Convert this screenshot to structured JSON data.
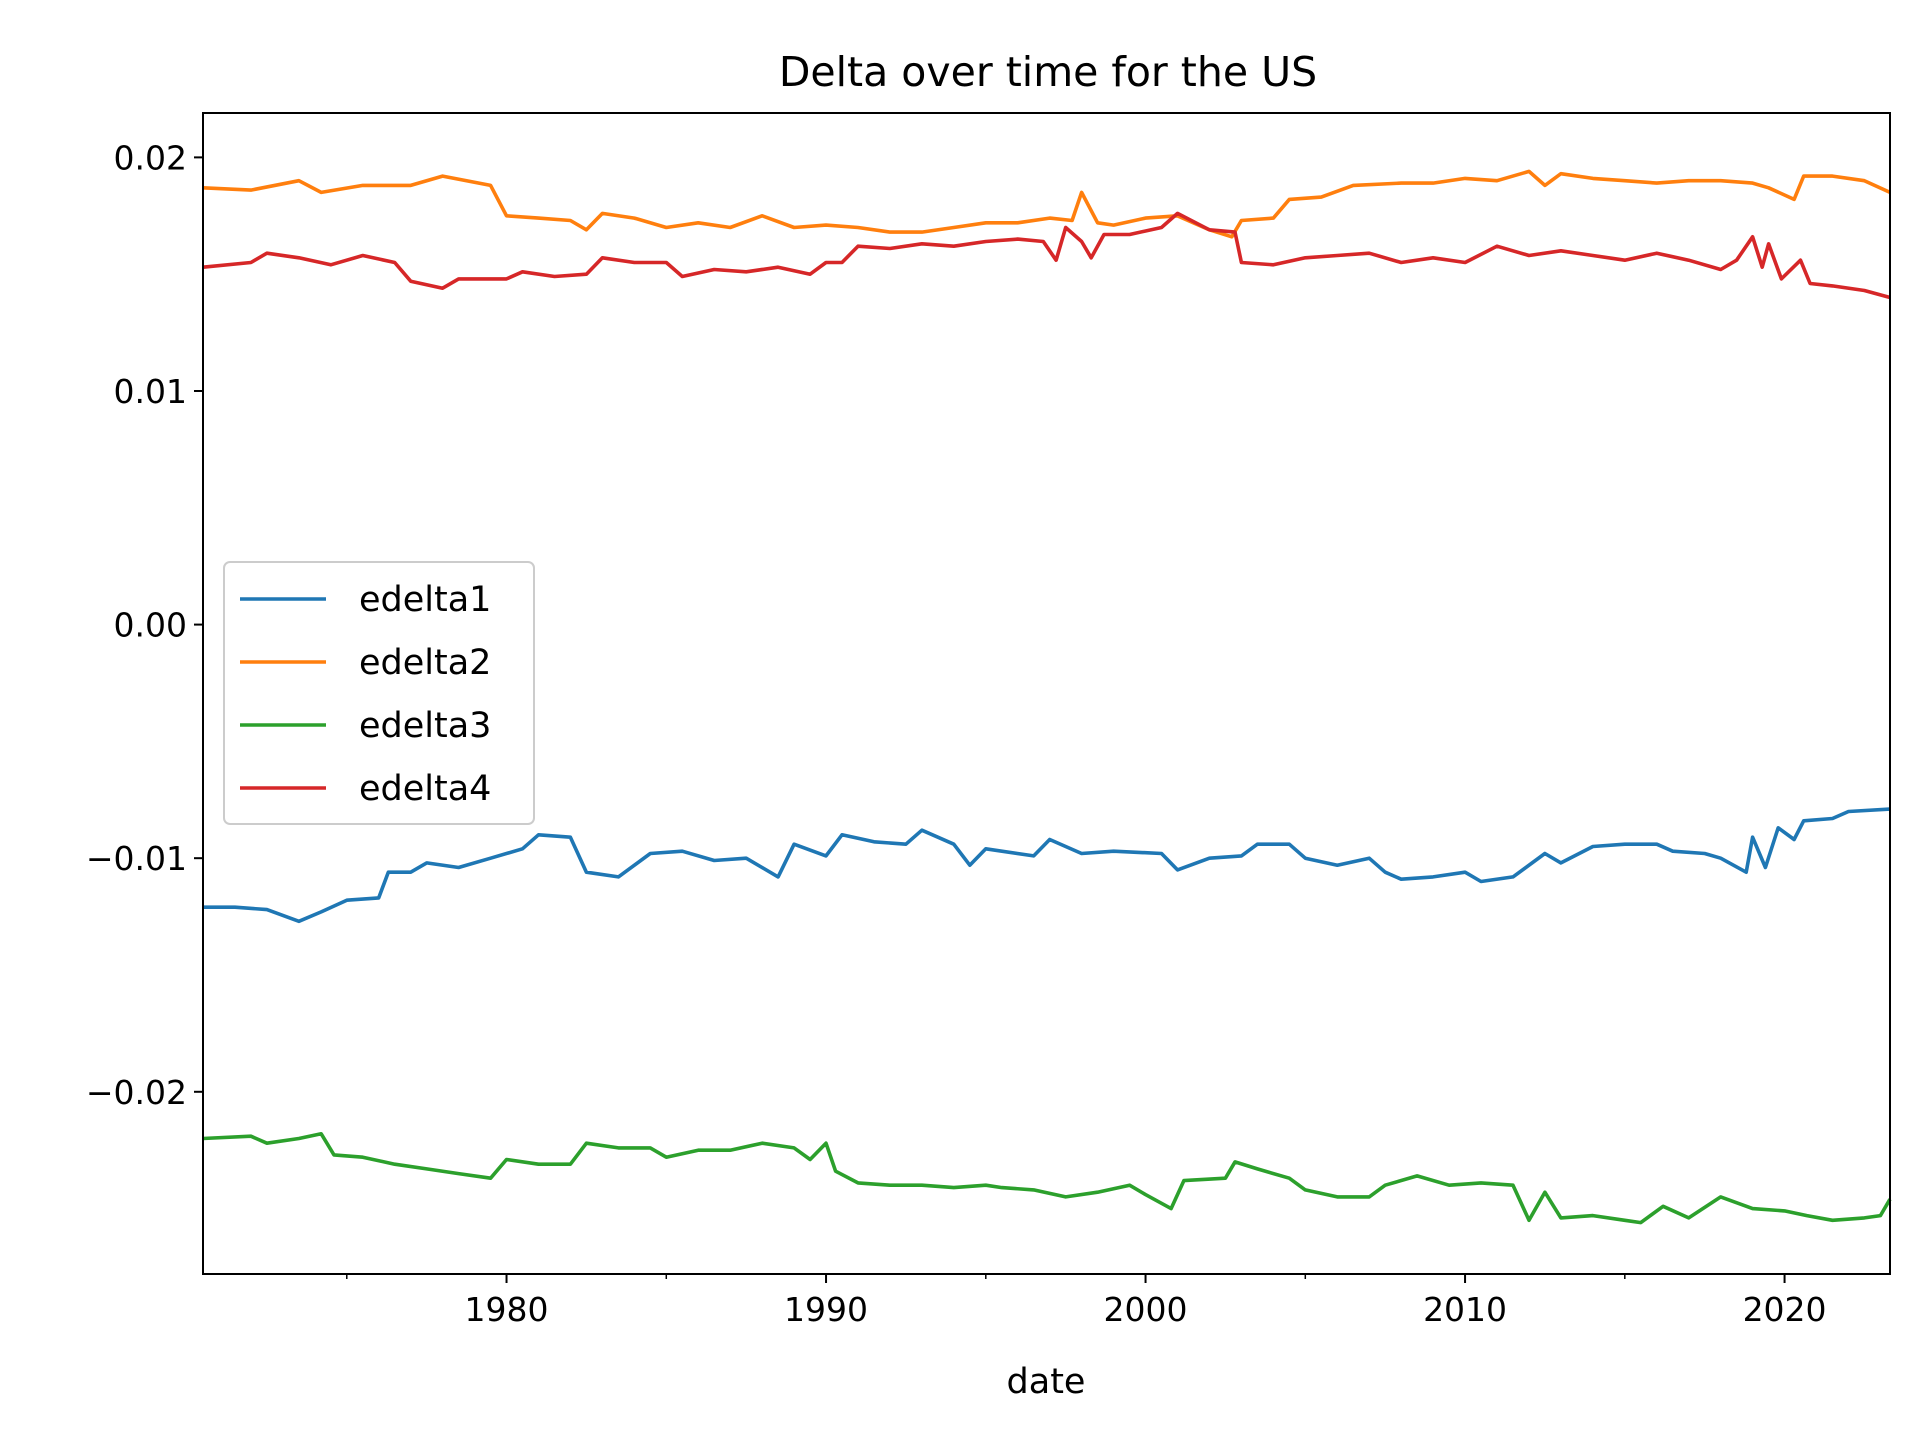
{
  "chart_data": {
    "type": "line",
    "title": "Delta over time for the US",
    "xlabel": "date",
    "ylabel": "",
    "xlim": [
      1970.5,
      2023.3
    ],
    "ylim": [
      -0.0278,
      0.0219
    ],
    "x_ticks_major": [
      1980,
      1990,
      2000,
      2010,
      2020
    ],
    "x_ticks_minor": [
      1975,
      1985,
      1995,
      2005,
      2015
    ],
    "y_ticks": [
      {
        "value": 0.02,
        "label": "0.02"
      },
      {
        "value": 0.01,
        "label": "0.01"
      },
      {
        "value": 0.0,
        "label": "0.00"
      },
      {
        "value": -0.01,
        "label": "−0.01"
      },
      {
        "value": -0.02,
        "label": "−0.02"
      }
    ],
    "grid": false,
    "legend": "center-left",
    "series": [
      {
        "name": "edelta1",
        "color": "#1f77b4",
        "points": [
          [
            1970.5,
            -0.0121
          ],
          [
            1971.5,
            -0.0121
          ],
          [
            1972.5,
            -0.0122
          ],
          [
            1973.5,
            -0.0127
          ],
          [
            1974.2,
            -0.0123
          ],
          [
            1975,
            -0.0118
          ],
          [
            1976,
            -0.0117
          ],
          [
            1976.3,
            -0.0106
          ],
          [
            1977,
            -0.0106
          ],
          [
            1977.5,
            -0.0102
          ],
          [
            1978.5,
            -0.0104
          ],
          [
            1979.5,
            -0.01
          ],
          [
            1980.5,
            -0.0096
          ],
          [
            1981,
            -0.009
          ],
          [
            1982,
            -0.0091
          ],
          [
            1982.5,
            -0.0106
          ],
          [
            1983.5,
            -0.0108
          ],
          [
            1984.5,
            -0.0098
          ],
          [
            1985.5,
            -0.0097
          ],
          [
            1986.5,
            -0.0101
          ],
          [
            1987.5,
            -0.01
          ],
          [
            1988.5,
            -0.0108
          ],
          [
            1989,
            -0.0094
          ],
          [
            1990,
            -0.0099
          ],
          [
            1990.5,
            -0.009
          ],
          [
            1991.5,
            -0.0093
          ],
          [
            1992.5,
            -0.0094
          ],
          [
            1993,
            -0.0088
          ],
          [
            1994,
            -0.0094
          ],
          [
            1994.5,
            -0.0103
          ],
          [
            1995,
            -0.0096
          ],
          [
            1996.5,
            -0.0099
          ],
          [
            1997,
            -0.0092
          ],
          [
            1998,
            -0.0098
          ],
          [
            1999,
            -0.0097
          ],
          [
            2000.5,
            -0.0098
          ],
          [
            2001,
            -0.0105
          ],
          [
            2002,
            -0.01
          ],
          [
            2003,
            -0.0099
          ],
          [
            2003.5,
            -0.0094
          ],
          [
            2004.5,
            -0.0094
          ],
          [
            2005,
            -0.01
          ],
          [
            2006,
            -0.0103
          ],
          [
            2007,
            -0.01
          ],
          [
            2007.5,
            -0.0106
          ],
          [
            2008,
            -0.0109
          ],
          [
            2009,
            -0.0108
          ],
          [
            2010,
            -0.0106
          ],
          [
            2010.5,
            -0.011
          ],
          [
            2011.5,
            -0.0108
          ],
          [
            2012.5,
            -0.0098
          ],
          [
            2013,
            -0.0102
          ],
          [
            2014,
            -0.0095
          ],
          [
            2015,
            -0.0094
          ],
          [
            2016,
            -0.0094
          ],
          [
            2016.5,
            -0.0097
          ],
          [
            2017.5,
            -0.0098
          ],
          [
            2018,
            -0.01
          ],
          [
            2018.8,
            -0.0106
          ],
          [
            2019,
            -0.0091
          ],
          [
            2019.4,
            -0.0104
          ],
          [
            2019.8,
            -0.0087
          ],
          [
            2020.3,
            -0.0092
          ],
          [
            2020.6,
            -0.0084
          ],
          [
            2021.5,
            -0.0083
          ],
          [
            2022,
            -0.008
          ],
          [
            2023.3,
            -0.0079
          ]
        ]
      },
      {
        "name": "edelta2",
        "color": "#ff7f0e",
        "points": [
          [
            1970.5,
            0.0187
          ],
          [
            1972,
            0.0186
          ],
          [
            1973.5,
            0.019
          ],
          [
            1974.2,
            0.0185
          ],
          [
            1975.5,
            0.0188
          ],
          [
            1977,
            0.0188
          ],
          [
            1978,
            0.0192
          ],
          [
            1979.5,
            0.0188
          ],
          [
            1980,
            0.0175
          ],
          [
            1981,
            0.0174
          ],
          [
            1982,
            0.0173
          ],
          [
            1982.5,
            0.0169
          ],
          [
            1983,
            0.0176
          ],
          [
            1984,
            0.0174
          ],
          [
            1985,
            0.017
          ],
          [
            1986,
            0.0172
          ],
          [
            1987,
            0.017
          ],
          [
            1988,
            0.0175
          ],
          [
            1989,
            0.017
          ],
          [
            1990,
            0.0171
          ],
          [
            1991,
            0.017
          ],
          [
            1992,
            0.0168
          ],
          [
            1993,
            0.0168
          ],
          [
            1994,
            0.017
          ],
          [
            1995,
            0.0172
          ],
          [
            1996,
            0.0172
          ],
          [
            1997,
            0.0174
          ],
          [
            1997.7,
            0.0173
          ],
          [
            1998,
            0.0185
          ],
          [
            1998.5,
            0.0172
          ],
          [
            1999,
            0.0171
          ],
          [
            2000,
            0.0174
          ],
          [
            2001,
            0.0175
          ],
          [
            2002,
            0.0169
          ],
          [
            2002.7,
            0.0166
          ],
          [
            2003,
            0.0173
          ],
          [
            2004,
            0.0174
          ],
          [
            2004.5,
            0.0182
          ],
          [
            2005.5,
            0.0183
          ],
          [
            2006.5,
            0.0188
          ],
          [
            2008,
            0.0189
          ],
          [
            2009,
            0.0189
          ],
          [
            2010,
            0.0191
          ],
          [
            2011,
            0.019
          ],
          [
            2012,
            0.0194
          ],
          [
            2012.5,
            0.0188
          ],
          [
            2013,
            0.0193
          ],
          [
            2014,
            0.0191
          ],
          [
            2015,
            0.019
          ],
          [
            2016,
            0.0189
          ],
          [
            2017,
            0.019
          ],
          [
            2018,
            0.019
          ],
          [
            2019,
            0.0189
          ],
          [
            2019.5,
            0.0187
          ],
          [
            2020.3,
            0.0182
          ],
          [
            2020.6,
            0.0192
          ],
          [
            2021.5,
            0.0192
          ],
          [
            2022.5,
            0.019
          ],
          [
            2023.3,
            0.0185
          ]
        ]
      },
      {
        "name": "edelta3",
        "color": "#2ca02c",
        "points": [
          [
            1970.5,
            -0.022
          ],
          [
            1972,
            -0.0219
          ],
          [
            1972.5,
            -0.0222
          ],
          [
            1973.5,
            -0.022
          ],
          [
            1974.2,
            -0.0218
          ],
          [
            1974.6,
            -0.0227
          ],
          [
            1975.5,
            -0.0228
          ],
          [
            1976.5,
            -0.0231
          ],
          [
            1977.5,
            -0.0233
          ],
          [
            1978.5,
            -0.0235
          ],
          [
            1979.5,
            -0.0237
          ],
          [
            1980,
            -0.0229
          ],
          [
            1981,
            -0.0231
          ],
          [
            1982,
            -0.0231
          ],
          [
            1982.5,
            -0.0222
          ],
          [
            1983.5,
            -0.0224
          ],
          [
            1984.5,
            -0.0224
          ],
          [
            1985,
            -0.0228
          ],
          [
            1986,
            -0.0225
          ],
          [
            1987,
            -0.0225
          ],
          [
            1988,
            -0.0222
          ],
          [
            1989,
            -0.0224
          ],
          [
            1989.5,
            -0.0229
          ],
          [
            1990,
            -0.0222
          ],
          [
            1990.3,
            -0.0234
          ],
          [
            1991,
            -0.0239
          ],
          [
            1992,
            -0.024
          ],
          [
            1993,
            -0.024
          ],
          [
            1994,
            -0.0241
          ],
          [
            1995,
            -0.024
          ],
          [
            1995.5,
            -0.0241
          ],
          [
            1996.5,
            -0.0242
          ],
          [
            1997.5,
            -0.0245
          ],
          [
            1998.5,
            -0.0243
          ],
          [
            1999.5,
            -0.024
          ],
          [
            2000,
            -0.0244
          ],
          [
            2000.8,
            -0.025
          ],
          [
            2001.2,
            -0.0238
          ],
          [
            2002.5,
            -0.0237
          ],
          [
            2002.8,
            -0.023
          ],
          [
            2003.5,
            -0.0233
          ],
          [
            2004.5,
            -0.0237
          ],
          [
            2005,
            -0.0242
          ],
          [
            2006,
            -0.0245
          ],
          [
            2007,
            -0.0245
          ],
          [
            2007.5,
            -0.024
          ],
          [
            2008.5,
            -0.0236
          ],
          [
            2009.5,
            -0.024
          ],
          [
            2010.5,
            -0.0239
          ],
          [
            2011.5,
            -0.024
          ],
          [
            2012,
            -0.0255
          ],
          [
            2012.5,
            -0.0243
          ],
          [
            2013,
            -0.0254
          ],
          [
            2014,
            -0.0253
          ],
          [
            2015,
            -0.0255
          ],
          [
            2015.5,
            -0.0256
          ],
          [
            2016.2,
            -0.0249
          ],
          [
            2017,
            -0.0254
          ],
          [
            2018,
            -0.0245
          ],
          [
            2019,
            -0.025
          ],
          [
            2020,
            -0.0251
          ],
          [
            2020.7,
            -0.0253
          ],
          [
            2021.5,
            -0.0255
          ],
          [
            2022.5,
            -0.0254
          ],
          [
            2023,
            -0.0253
          ],
          [
            2023.3,
            -0.0246
          ]
        ]
      },
      {
        "name": "edelta4",
        "color": "#d62728",
        "points": [
          [
            1970.5,
            0.0153
          ],
          [
            1972,
            0.0155
          ],
          [
            1972.5,
            0.0159
          ],
          [
            1973.5,
            0.0157
          ],
          [
            1974.5,
            0.0154
          ],
          [
            1975.5,
            0.0158
          ],
          [
            1976.5,
            0.0155
          ],
          [
            1977,
            0.0147
          ],
          [
            1978,
            0.0144
          ],
          [
            1978.5,
            0.0148
          ],
          [
            1980,
            0.0148
          ],
          [
            1980.5,
            0.0151
          ],
          [
            1981.5,
            0.0149
          ],
          [
            1982.5,
            0.015
          ],
          [
            1983,
            0.0157
          ],
          [
            1984,
            0.0155
          ],
          [
            1985,
            0.0155
          ],
          [
            1985.5,
            0.0149
          ],
          [
            1986.5,
            0.0152
          ],
          [
            1987.5,
            0.0151
          ],
          [
            1988.5,
            0.0153
          ],
          [
            1989.5,
            0.015
          ],
          [
            1990,
            0.0155
          ],
          [
            1990.5,
            0.0155
          ],
          [
            1991,
            0.0162
          ],
          [
            1992,
            0.0161
          ],
          [
            1993,
            0.0163
          ],
          [
            1994,
            0.0162
          ],
          [
            1995,
            0.0164
          ],
          [
            1996,
            0.0165
          ],
          [
            1996.8,
            0.0164
          ],
          [
            1997.2,
            0.0156
          ],
          [
            1997.5,
            0.017
          ],
          [
            1998,
            0.0164
          ],
          [
            1998.3,
            0.0157
          ],
          [
            1998.7,
            0.0167
          ],
          [
            1999.5,
            0.0167
          ],
          [
            2000.5,
            0.017
          ],
          [
            2001,
            0.0176
          ],
          [
            2002,
            0.0169
          ],
          [
            2002.8,
            0.0168
          ],
          [
            2003,
            0.0155
          ],
          [
            2004,
            0.0154
          ],
          [
            2005,
            0.0157
          ],
          [
            2006,
            0.0158
          ],
          [
            2007,
            0.0159
          ],
          [
            2008,
            0.0155
          ],
          [
            2009,
            0.0157
          ],
          [
            2010,
            0.0155
          ],
          [
            2011,
            0.0162
          ],
          [
            2012,
            0.0158
          ],
          [
            2013,
            0.016
          ],
          [
            2014,
            0.0158
          ],
          [
            2015,
            0.0156
          ],
          [
            2016,
            0.0159
          ],
          [
            2017,
            0.0156
          ],
          [
            2018,
            0.0152
          ],
          [
            2018.5,
            0.0156
          ],
          [
            2019,
            0.0166
          ],
          [
            2019.3,
            0.0153
          ],
          [
            2019.5,
            0.0163
          ],
          [
            2019.9,
            0.0148
          ],
          [
            2020.5,
            0.0156
          ],
          [
            2020.8,
            0.0146
          ],
          [
            2021.5,
            0.0145
          ],
          [
            2022.5,
            0.0143
          ],
          [
            2023.3,
            0.014
          ]
        ]
      }
    ]
  }
}
